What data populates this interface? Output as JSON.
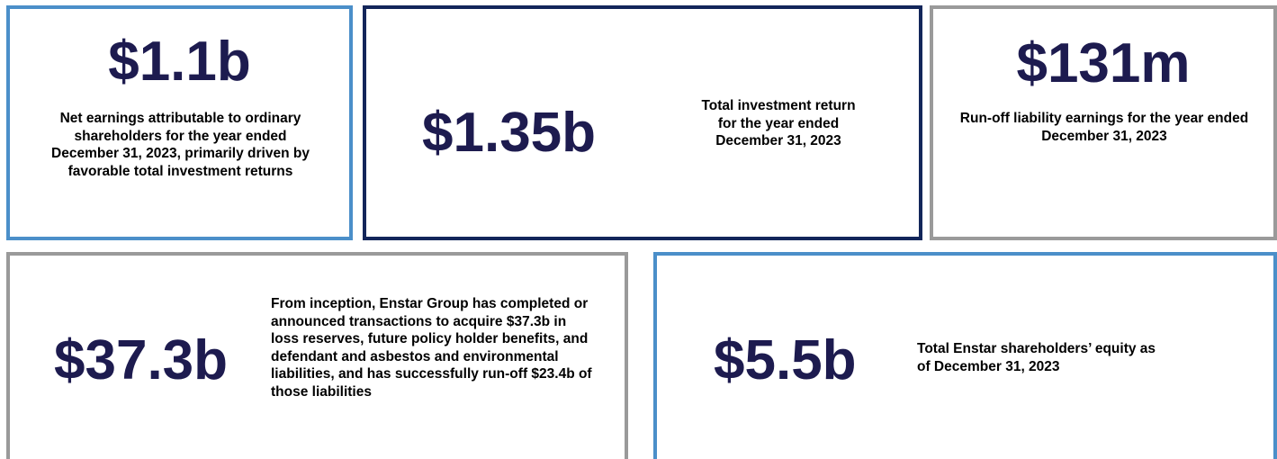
{
  "cards": [
    {
      "value": "$1.1b",
      "description": "Net earnings attributable to ordinary shareholders for the year ended December 31, 2023, primarily driven by favorable total investment returns"
    },
    {
      "value": "$1.35b",
      "description": "Total investment return for the year ended December 31, 2023"
    },
    {
      "value": "$131m",
      "description": "Run-off liability earnings for the year ended December 31, 2023"
    },
    {
      "value": "$37.3b",
      "description": "From inception, Enstar Group has completed or announced transactions to acquire $37.3b in loss reserves, future policy holder benefits, and defendant and asbestos and environmental liabilities, and has successfully run-off $23.4b of those liabilities"
    },
    {
      "value": "$5.5b",
      "description": "Total Enstar shareholders’ equity as of December 31, 2023"
    }
  ]
}
